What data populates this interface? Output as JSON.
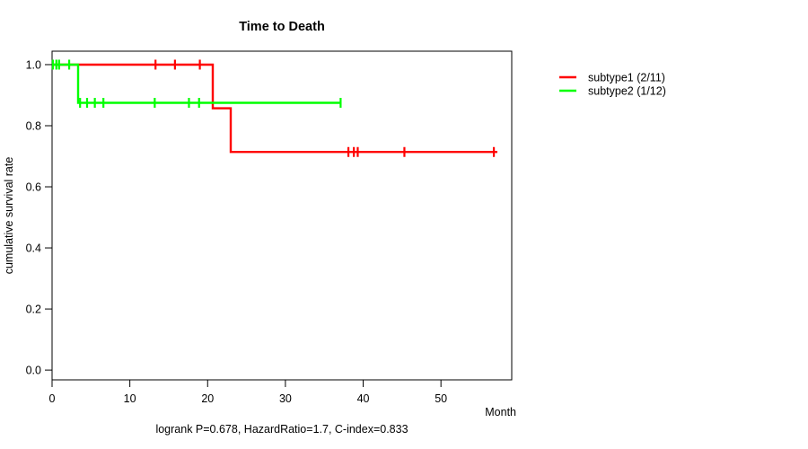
{
  "title": "Time to Death",
  "axes": {
    "x_label": "Month",
    "y_label": "cumulative survival rate"
  },
  "footer": {
    "annotation": "logrank P=0.678, HazardRatio=1.7, C-index=0.833"
  },
  "legend": {
    "items": [
      {
        "label": "subtype1 (2/11)",
        "color": "#ff0000"
      },
      {
        "label": "subtype2 (1/12)",
        "color": "#00ff00"
      }
    ]
  },
  "chart_data": {
    "type": "line",
    "variant": "kaplan-meier-step",
    "title": "Time to Death",
    "xlabel": "Month",
    "ylabel": "cumulative survival rate",
    "annotation": "logrank P=0.678, HazardRatio=1.7, C-index=0.833",
    "xlim": [
      0,
      59.1
    ],
    "ylim": [
      -0.032,
      1.044
    ],
    "xticks": [
      0,
      10,
      20,
      30,
      40,
      50
    ],
    "yticks": [
      0.0,
      0.2,
      0.4,
      0.6,
      0.8,
      1.0
    ],
    "grid": false,
    "legend_position": "right-outside",
    "series": [
      {
        "name": "subtype1 (2/11)",
        "color": "#ff0000",
        "events": "2 deaths / 11 subjects",
        "steps": [
          [
            0,
            1.0
          ],
          [
            20.66,
            1.0
          ],
          [
            20.66,
            0.857
          ],
          [
            22.97,
            0.857
          ],
          [
            22.97,
            0.714
          ],
          [
            57.25,
            0.714
          ]
        ],
        "censors": [
          [
            13.3,
            1.0
          ],
          [
            15.8,
            1.0
          ],
          [
            19.0,
            1.0
          ],
          [
            38.1,
            0.714
          ],
          [
            38.8,
            0.714
          ],
          [
            39.3,
            0.714
          ],
          [
            45.3,
            0.714
          ],
          [
            56.8,
            0.714
          ]
        ]
      },
      {
        "name": "subtype2 (1/12)",
        "color": "#00ff00",
        "events": "1 death / 12 subjects",
        "steps": [
          [
            0,
            1.0
          ],
          [
            3.35,
            1.0
          ],
          [
            3.35,
            0.875
          ],
          [
            37.2,
            0.875
          ]
        ],
        "censors": [
          [
            0.1,
            1.0
          ],
          [
            0.55,
            1.0
          ],
          [
            0.9,
            1.0
          ],
          [
            2.2,
            1.0
          ],
          [
            3.6,
            0.875
          ],
          [
            4.5,
            0.875
          ],
          [
            5.5,
            0.875
          ],
          [
            6.6,
            0.875
          ],
          [
            13.2,
            0.875
          ],
          [
            17.6,
            0.875
          ],
          [
            18.9,
            0.875
          ],
          [
            37.1,
            0.875
          ]
        ]
      }
    ]
  }
}
